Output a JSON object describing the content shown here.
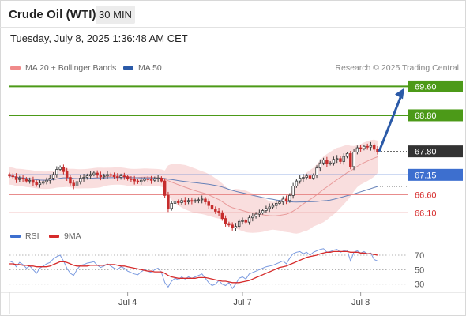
{
  "header": {
    "title": "Crude Oil (WTI)",
    "timeframe": "30 MIN",
    "datetime": "Tuesday, July 8, 2025 1:36:48 AM CET"
  },
  "legend": {
    "ma20": "MA 20 + Bollinger Bands",
    "ma50": "MA 50",
    "credit": "Research © 2025 Trading Central"
  },
  "rsi_legend": {
    "rsi": "RSI",
    "ma9": "9MA"
  },
  "colors": {
    "green": "#4c9a18",
    "blue": "#3d6fcf",
    "red": "#d62b2b",
    "dark": "#333333",
    "bollinger": "#f7d3d3",
    "ma50": "#6681b8",
    "arrow": "#2b5aa8"
  },
  "chart_data": [
    {
      "type": "candlestick",
      "title": "Crude Oil (WTI)",
      "timeframe": "30 MIN",
      "x_ticks": [
        "Jul 4",
        "Jul 7",
        "Jul 8"
      ],
      "ylim": [
        65.8,
        69.85
      ],
      "price_levels": [
        {
          "value": 69.6,
          "label": "69.60",
          "style": "resistance",
          "color": "#4c9a18"
        },
        {
          "value": 68.8,
          "label": "68.80",
          "style": "resistance",
          "color": "#4c9a18"
        },
        {
          "value": 67.8,
          "label": "67.80",
          "style": "last price",
          "color": "#333333"
        },
        {
          "value": 67.15,
          "label": "67.15",
          "style": "pivot",
          "color": "#3d6fcf"
        },
        {
          "value": 66.6,
          "label": "66.60",
          "style": "support",
          "color": "#d62b2b"
        },
        {
          "value": 66.1,
          "label": "66.10",
          "style": "support",
          "color": "#d62b2b"
        }
      ],
      "target_arrow": {
        "from": 67.8,
        "to": 69.6
      },
      "close": [
        67.12,
        67.1,
        67.02,
        67.06,
        67.04,
        66.98,
        67.0,
        66.94,
        66.88,
        66.92,
        66.96,
        67.0,
        67.06,
        67.16,
        67.3,
        67.36,
        67.24,
        67.08,
        66.92,
        66.84,
        66.96,
        67.06,
        67.08,
        67.12,
        67.16,
        67.2,
        67.14,
        67.1,
        67.12,
        67.16,
        67.14,
        67.1,
        67.08,
        67.12,
        67.1,
        67.04,
        67.02,
        66.98,
        66.96,
        67.0,
        67.04,
        67.02,
        67.0,
        67.04,
        67.06,
        66.98,
        66.58,
        66.22,
        66.36,
        66.42,
        66.38,
        66.44,
        66.4,
        66.44,
        66.42,
        66.44,
        66.46,
        66.48,
        66.4,
        66.3,
        66.2,
        66.14,
        66.1,
        65.94,
        65.8,
        65.76,
        65.68,
        65.72,
        65.86,
        65.88,
        65.84,
        65.96,
        66.0,
        66.06,
        66.1,
        66.16,
        66.22,
        66.26,
        66.3,
        66.36,
        66.4,
        66.48,
        66.44,
        66.58,
        66.84,
        66.98,
        67.06,
        67.08,
        67.12,
        67.06,
        67.14,
        67.34,
        67.48,
        67.56,
        67.46,
        67.48,
        67.58,
        67.6,
        67.52,
        67.66,
        67.74,
        67.38,
        67.78,
        67.9,
        67.88,
        67.94,
        67.92,
        67.96,
        67.86,
        67.8
      ]
    },
    {
      "type": "line",
      "title": "RSI",
      "yticks": [
        30,
        50,
        70
      ],
      "series": [
        {
          "name": "RSI",
          "color": "#3d6fcf",
          "values": [
            62,
            60,
            54,
            60,
            57,
            52,
            55,
            50,
            45,
            52,
            55,
            58,
            60,
            65,
            68,
            70,
            62,
            52,
            45,
            42,
            50,
            56,
            57,
            59,
            60,
            61,
            56,
            53,
            55,
            58,
            55,
            52,
            50,
            54,
            52,
            48,
            46,
            44,
            43,
            47,
            50,
            48,
            46,
            50,
            52,
            46,
            32,
            26,
            34,
            38,
            36,
            40,
            37,
            40,
            38,
            40,
            42,
            44,
            38,
            32,
            28,
            30,
            35,
            30,
            28,
            32,
            24,
            30,
            38,
            40,
            37,
            44,
            46,
            48,
            50,
            52,
            54,
            55,
            56,
            58,
            60,
            62,
            58,
            66,
            72,
            74,
            75,
            72,
            74,
            70,
            74,
            76,
            78,
            79,
            74,
            75,
            77,
            78,
            74,
            76,
            77,
            62,
            74,
            76,
            73,
            75,
            72,
            73,
            64,
            62
          ]
        },
        {
          "name": "9MA",
          "color": "#d62b2b",
          "values": [
            58,
            58,
            57,
            57,
            56,
            56,
            55,
            55,
            54,
            54,
            54,
            54,
            55,
            57,
            59,
            61,
            61,
            60,
            58,
            56,
            55,
            55,
            55,
            55,
            56,
            56,
            56,
            56,
            56,
            57,
            57,
            57,
            56,
            55,
            55,
            54,
            53,
            52,
            51,
            50,
            49,
            48,
            48,
            47,
            47,
            47,
            45,
            42,
            40,
            39,
            38,
            38,
            38,
            38,
            38,
            38,
            39,
            39,
            39,
            38,
            37,
            36,
            35,
            34,
            34,
            33,
            32,
            32,
            32,
            33,
            34,
            35,
            37,
            39,
            41,
            43,
            45,
            47,
            49,
            51,
            53,
            54,
            55,
            57,
            59,
            61,
            63,
            65,
            67,
            68,
            69,
            70,
            72,
            73,
            74,
            74,
            75,
            75,
            75,
            75,
            75,
            74,
            74,
            74,
            73,
            73,
            72,
            72,
            71,
            70
          ]
        }
      ]
    }
  ]
}
